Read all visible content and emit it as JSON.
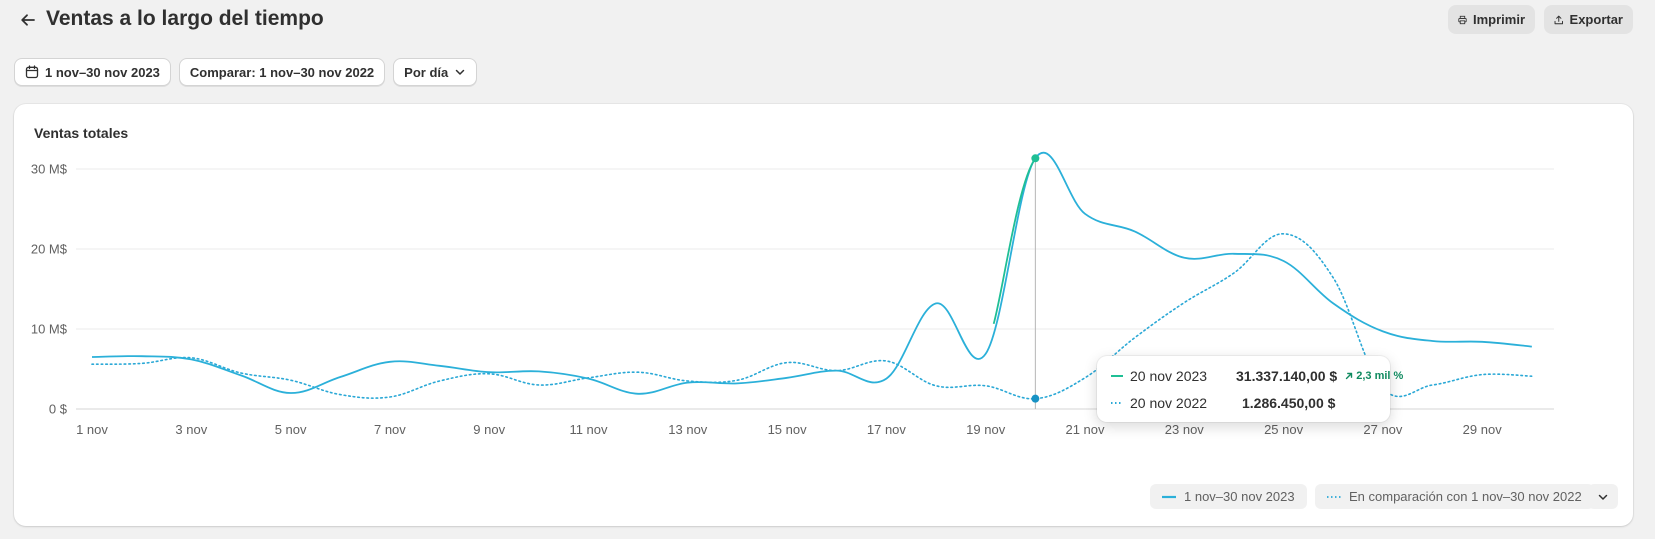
{
  "header": {
    "title": "Ventas a lo largo del tiempo",
    "print_label": "Imprimir",
    "export_label": "Exportar"
  },
  "toolbar": {
    "date_range": "1 nov–30 nov 2023",
    "compare": "Comparar: 1 nov–30 nov 2022",
    "granularity": "Por día"
  },
  "card": {
    "title": "Ventas totales"
  },
  "tooltip": {
    "primary_date": "20 nov 2023",
    "primary_value": "31.337.140,00 $",
    "change": "2,3 mil %",
    "comparison_date": "20 nov 2022",
    "comparison_value": "1.286.450,00 $"
  },
  "legend": {
    "primary": "1 nov–30 nov 2023",
    "comparison": "En comparación con 1 nov–30 nov 2022"
  },
  "colors": {
    "primary": "#2bb0d9",
    "highlight": "#1fbf95",
    "comparison": "#2aa8d6",
    "positive": "#0f8a5f"
  },
  "chart_data": {
    "type": "line",
    "title": "Ventas totales",
    "x": [
      "1 nov",
      "2 nov",
      "3 nov",
      "4 nov",
      "5 nov",
      "6 nov",
      "7 nov",
      "8 nov",
      "9 nov",
      "10 nov",
      "11 nov",
      "12 nov",
      "13 nov",
      "14 nov",
      "15 nov",
      "16 nov",
      "17 nov",
      "18 nov",
      "19 nov",
      "20 nov",
      "21 nov",
      "22 nov",
      "23 nov",
      "24 nov",
      "25 nov",
      "26 nov",
      "27 nov",
      "28 nov",
      "29 nov",
      "30 nov"
    ],
    "x_tick_labels": [
      "1 nov",
      "3 nov",
      "5 nov",
      "7 nov",
      "9 nov",
      "11 nov",
      "13 nov",
      "15 nov",
      "17 nov",
      "19 nov",
      "21 nov",
      "23 nov",
      "25 nov",
      "27 nov",
      "29 nov"
    ],
    "y_tick_labels": [
      "0 $",
      "10 M$",
      "20 M$",
      "30 M$"
    ],
    "y_ticks": [
      0,
      10,
      20,
      30
    ],
    "ylim": [
      0,
      33
    ],
    "y_unit": "M$",
    "grid": true,
    "legend_position": "bottom-right",
    "highlight_index": 19,
    "series": [
      {
        "name": "1 nov–30 nov 2023",
        "style": "solid",
        "values": [
          6.5,
          6.6,
          6.2,
          4.2,
          2.0,
          4.0,
          5.9,
          5.4,
          4.6,
          4.7,
          3.8,
          1.9,
          3.3,
          3.2,
          3.9,
          4.8,
          3.8,
          13.2,
          6.9,
          31.34,
          24.4,
          22.2,
          18.9,
          19.4,
          18.5,
          13.2,
          9.7,
          8.5,
          8.4,
          7.8
        ]
      },
      {
        "name": "En comparación con 1 nov–30 nov 2022",
        "style": "dotted",
        "values": [
          5.6,
          5.7,
          6.4,
          4.5,
          3.6,
          1.8,
          1.5,
          3.5,
          4.4,
          3.0,
          3.9,
          4.6,
          3.5,
          3.6,
          5.8,
          4.8,
          6.0,
          2.9,
          2.9,
          1.29,
          3.9,
          8.9,
          13.3,
          17.0,
          21.9,
          16.4,
          2.6,
          3.0,
          4.3,
          4.1
        ]
      }
    ]
  }
}
